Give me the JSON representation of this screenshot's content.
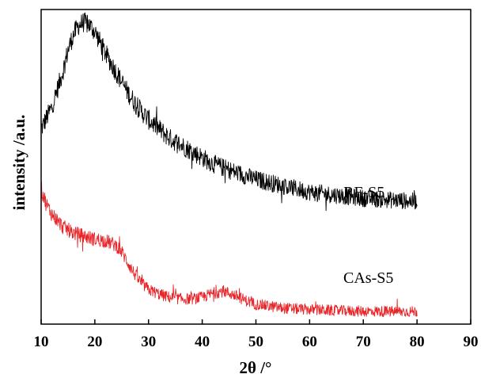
{
  "chart_data": {
    "type": "line",
    "xlabel": "2θ /°",
    "ylabel": "intensity /a.u.",
    "xlim": [
      10,
      90
    ],
    "xticks": [
      "10",
      "20",
      "30",
      "40",
      "50",
      "60",
      "70",
      "80",
      "90"
    ],
    "y_ticks_shown": false,
    "grid": false,
    "legend": "none (series labelled inline at right)",
    "series": [
      {
        "name": "RF-S5",
        "color": "#000000",
        "x": [
          10,
          12,
          14,
          15,
          16,
          17,
          18,
          19,
          20,
          22,
          24,
          26,
          28,
          30,
          32,
          34,
          36,
          38,
          40,
          42,
          45,
          50,
          55,
          60,
          65,
          70,
          75,
          80
        ],
        "y": [
          62,
          69,
          80,
          87,
          92,
          95,
          96,
          95,
          93,
          86,
          80,
          74,
          69,
          65,
          62,
          59,
          57,
          55,
          53,
          51,
          49,
          46,
          44,
          42,
          41,
          40,
          39.5,
          39
        ]
      },
      {
        "name": "CAs-S5",
        "color": "#e8262a",
        "x": [
          10,
          11,
          12,
          14,
          16,
          18,
          20,
          22,
          24,
          25,
          26,
          27,
          28,
          29,
          30,
          32,
          34,
          36,
          38,
          40,
          42,
          44,
          46,
          48,
          50,
          55,
          60,
          65,
          70,
          75,
          80
        ],
        "y": [
          43,
          38,
          35,
          31,
          29,
          28,
          27,
          26.5,
          25,
          23,
          20,
          17,
          14.5,
          12.5,
          11,
          9.5,
          8.5,
          8,
          8,
          8.5,
          9.8,
          10.5,
          9.2,
          7.6,
          6.3,
          5.1,
          4.6,
          4.3,
          4.1,
          4,
          4
        ]
      }
    ]
  }
}
